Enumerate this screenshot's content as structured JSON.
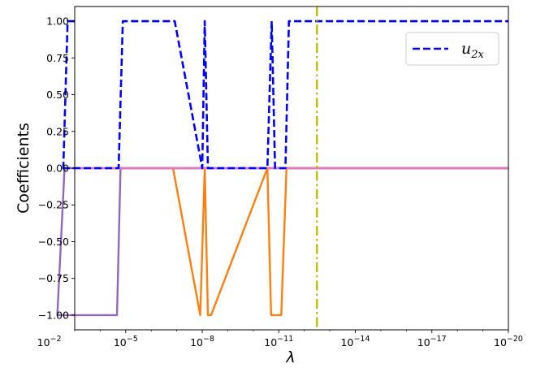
{
  "chart_data": {
    "type": "line",
    "xscale": "log",
    "x_inverted": true,
    "xlim": [
      0.001,
      1e-20
    ],
    "ylim": [
      -1.1,
      1.1
    ],
    "xlabel": "λ",
    "ylabel": "Coefficients",
    "grid": false,
    "legend": {
      "placement": "top-right",
      "entries": [
        {
          "series": "u2x",
          "label": "u",
          "subscript": "2x"
        }
      ]
    },
    "x_tick_labels": [
      {
        "x": 0.01,
        "base": "10",
        "exp": "−2"
      },
      {
        "x": 1e-05,
        "base": "10",
        "exp": "−5"
      },
      {
        "x": 1e-08,
        "base": "10",
        "exp": "−8"
      },
      {
        "x": 1e-11,
        "base": "10",
        "exp": "−11"
      },
      {
        "x": 1e-14,
        "base": "10",
        "exp": "−14"
      },
      {
        "x": 1e-17,
        "base": "10",
        "exp": "−17"
      },
      {
        "x": 1e-20,
        "base": "10",
        "exp": "−20"
      }
    ],
    "y_ticks": [
      1.0,
      0.75,
      0.5,
      0.25,
      0.0,
      -0.25,
      -0.5,
      -0.75,
      -1.0
    ],
    "y_tick_labels": [
      "1.00",
      "0.75",
      "0.50",
      "0.25",
      "0.00",
      "−0.25",
      "−0.50",
      "−0.75",
      "−1.00"
    ],
    "vertical_line": {
      "x": 3.2e-13,
      "color": "#bfbf00",
      "style": "dashdot"
    },
    "series": [
      {
        "id": "zero-lines",
        "color": "#8c8c8c",
        "style": "solid",
        "x": [
          0.001,
          1e-20
        ],
        "y": [
          0,
          0
        ]
      },
      {
        "id": "purple",
        "color": "#9467bd",
        "style": "solid",
        "x": [
          0.001,
          0.0025,
          0.0048,
          2.2e-05,
          1.6e-05,
          1e-20
        ],
        "y": [
          0,
          0,
          -1,
          -1,
          0,
          0
        ]
      },
      {
        "id": "orange",
        "color": "#ff7f0e",
        "style": "solid",
        "x": [
          0.001,
          1.4e-07,
          1.2e-08,
          8e-09,
          6e-09,
          4.5e-09,
          2.8e-11,
          2e-11,
          8e-12,
          5e-12,
          4.2e-12,
          1e-20
        ],
        "y": [
          0,
          0,
          -1,
          0,
          -1,
          -1,
          0,
          -1,
          -1,
          0,
          0,
          0
        ]
      },
      {
        "id": "pink",
        "color": "#e377c2",
        "style": "solid",
        "x": [
          0.001,
          1e-20
        ],
        "y": [
          0,
          0
        ]
      },
      {
        "id": "u2x",
        "name": "u2x",
        "color": "#0000ff",
        "style": "dashed",
        "x": [
          0.001,
          0.0019,
          0.0028,
          0.0035,
          1.9e-05,
          1.3e-05,
          1.2e-07,
          1e-08,
          8e-09,
          6e-09,
          4.5e-09,
          2.8e-11,
          1.9e-11,
          1.4e-11,
          8e-12,
          5.5e-12,
          4e-12,
          1e-20
        ],
        "y": [
          1,
          1,
          0,
          0,
          0,
          1,
          1,
          0,
          1,
          0,
          0,
          0,
          1,
          0,
          0,
          0,
          1,
          1
        ]
      }
    ]
  }
}
